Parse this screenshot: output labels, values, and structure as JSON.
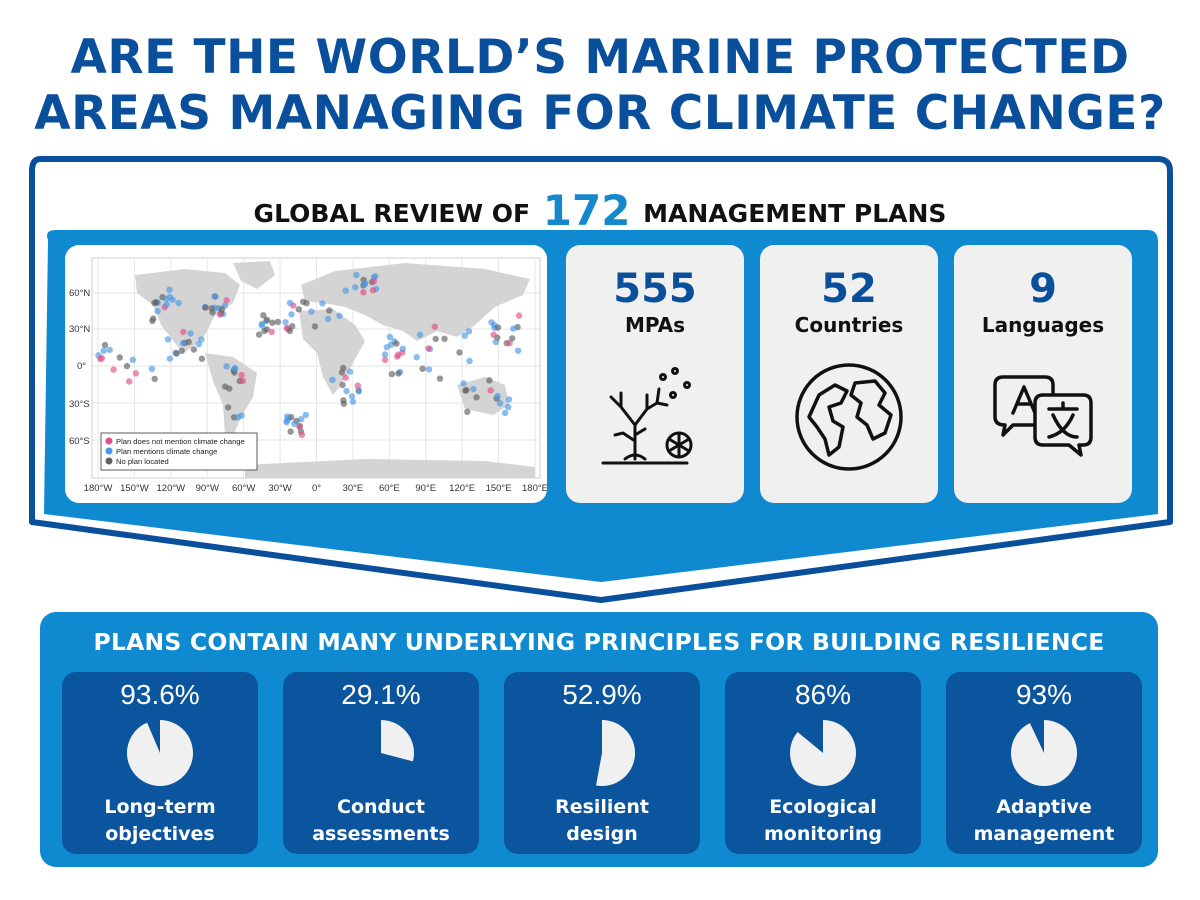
{
  "title": {
    "line1": "ARE THE WORLD’S MARINE PROTECTED",
    "line2": "AREAS MANAGING FOR CLIMATE CHANGE?"
  },
  "review": {
    "prefix": "GLOBAL REVIEW OF",
    "count": "172",
    "suffix": "MANAGEMENT PLANS"
  },
  "map": {
    "y_ticks": [
      "60°N",
      "30°N",
      "0°",
      "30°S",
      "60°S"
    ],
    "x_ticks": [
      "180°W",
      "150°W",
      "120°W",
      "90°W",
      "60°W",
      "30°W",
      "0°",
      "30°E",
      "60°E",
      "90°E",
      "120°E",
      "150°E",
      "180°E"
    ],
    "legend": [
      {
        "label": "Plan does not mention climate change",
        "color": "#e0508a"
      },
      {
        "label": "Plan mentions climate change",
        "color": "#4a98e6"
      },
      {
        "label": "No plan located",
        "color": "#606060"
      }
    ]
  },
  "stats": [
    {
      "value": "555",
      "label": "MPAs",
      "icon": "coral-icon"
    },
    {
      "value": "52",
      "label": "Countries",
      "icon": "globe-icon"
    },
    {
      "value": "9",
      "label": "Languages",
      "icon": "translate-icon"
    }
  ],
  "principles_title": "PLANS CONTAIN MANY UNDERLYING PRINCIPLES FOR BUILDING RESILIENCE",
  "principles": [
    {
      "pct_label": "93.6%",
      "pct": 93.6,
      "line1": "Long-term",
      "line2": "objectives"
    },
    {
      "pct_label": "29.1%",
      "pct": 29.1,
      "line1": "Conduct",
      "line2": "assessments"
    },
    {
      "pct_label": "52.9%",
      "pct": 52.9,
      "line1": "Resilient",
      "line2": "design"
    },
    {
      "pct_label": "86%",
      "pct": 86,
      "line1": "Ecological",
      "line2": "monitoring"
    },
    {
      "pct_label": "93%",
      "pct": 93,
      "line1": "Adaptive",
      "line2": "management"
    }
  ],
  "colors": {
    "navy": "#0a4f9c",
    "accent_blue": "#1588cc",
    "card_blue": "#0b559f",
    "panel_blue": "#0f8ad0",
    "pie_fill": "#f0f0f0"
  }
}
